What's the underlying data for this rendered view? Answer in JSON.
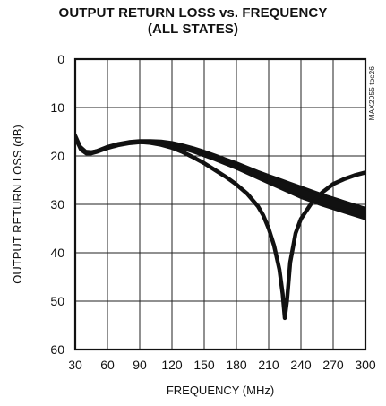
{
  "chart_data": {
    "type": "line",
    "title_line1": "OUTPUT RETURN LOSS vs. FREQUENCY",
    "title_line2": "(ALL STATES)",
    "xlabel": "FREQUENCY (MHz)",
    "ylabel": "OUTPUT RETURN LOSS (dB)",
    "watermark": "MAX2055 toc26",
    "xlim": [
      30,
      300
    ],
    "ylim": [
      0,
      60
    ],
    "y_inverted": true,
    "grid": true,
    "x_ticks": [
      30,
      60,
      90,
      120,
      150,
      180,
      210,
      240,
      270,
      300
    ],
    "y_ticks": [
      0,
      10,
      20,
      30,
      40,
      50,
      60
    ],
    "series": [
      {
        "band": true,
        "x": [
          30,
          35,
          40,
          45,
          50,
          60,
          70,
          80,
          90,
          100,
          110,
          120,
          130,
          140,
          150,
          160,
          170,
          180,
          190,
          200,
          210,
          220,
          230,
          240,
          250,
          260,
          270,
          280,
          290,
          300
        ],
        "y_upper": [
          15.5,
          18.0,
          19.0,
          19.1,
          18.9,
          18.0,
          17.4,
          17.0,
          16.8,
          16.8,
          16.9,
          17.2,
          17.7,
          18.3,
          19.0,
          19.8,
          20.6,
          21.4,
          22.3,
          23.2,
          24.0,
          24.8,
          25.6,
          26.4,
          27.2,
          28.0,
          28.7,
          29.4,
          30.1,
          30.8
        ],
        "y_lower": [
          16.5,
          18.8,
          19.6,
          19.6,
          19.3,
          18.5,
          17.9,
          17.5,
          17.3,
          17.3,
          17.5,
          17.9,
          18.5,
          19.2,
          20.0,
          20.8,
          21.7,
          22.6,
          23.6,
          24.6,
          25.6,
          26.6,
          27.6,
          28.6,
          29.4,
          30.2,
          30.9,
          31.6,
          32.3,
          33.0
        ]
      },
      {
        "x": [
          30,
          35,
          40,
          45,
          50,
          60,
          70,
          80,
          90,
          100,
          110,
          120,
          130,
          140,
          150,
          160,
          170,
          180,
          190,
          200,
          205,
          210,
          215,
          220,
          223,
          225,
          227,
          230,
          235,
          240,
          250,
          260,
          270,
          280,
          290,
          300
        ],
        "y": [
          16.0,
          18.5,
          19.3,
          19.3,
          19.0,
          18.2,
          17.6,
          17.3,
          17.1,
          17.3,
          17.7,
          18.3,
          19.2,
          20.3,
          21.5,
          22.9,
          24.3,
          25.9,
          27.8,
          30.4,
          32.3,
          35.0,
          38.5,
          43.5,
          48.5,
          53.5,
          50.0,
          42.0,
          36.0,
          33.0,
          29.7,
          27.5,
          25.8,
          24.8,
          24.0,
          23.4
        ]
      }
    ]
  }
}
